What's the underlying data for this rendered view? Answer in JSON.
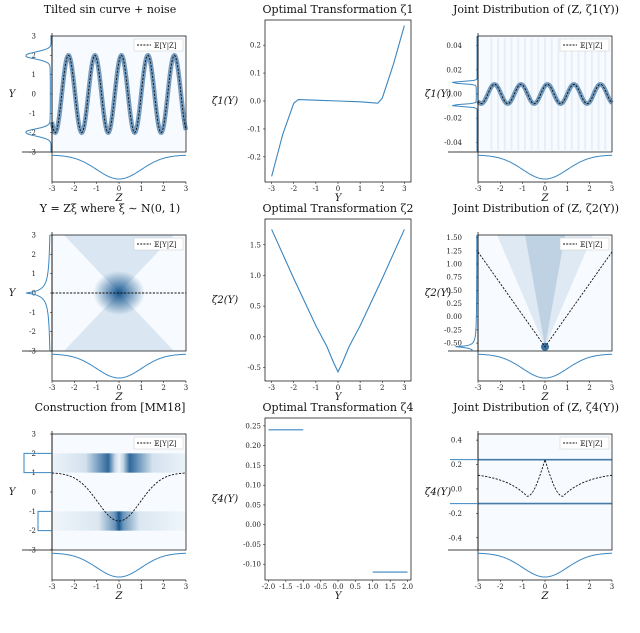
{
  "figure": {
    "accent_color": "#3a86c0",
    "density_color": "#0b4f8a",
    "expectation_color": "#111111"
  },
  "chart_data": [
    {
      "id": "p1",
      "type": "heatmap",
      "title": "Tilted sin curve + noise",
      "xlabel": "Z",
      "ylabel": "Y",
      "xlim": [
        -3,
        3
      ],
      "ylim": [
        -3,
        3
      ],
      "xticks": [
        "-3",
        "-2",
        "-1",
        "0",
        "1",
        "2",
        "3"
      ],
      "yticks": [
        "-3",
        "-2",
        "-1",
        "0",
        "1",
        "2",
        "3"
      ],
      "legend": "𝔼[Y|Z]",
      "legend_position": "top-right",
      "expectation": {
        "function": "2*sin(5.3*z + 1.0)"
      },
      "density_band_width": 0.12,
      "marginal_y": "bimodal peaks at y = -2 and y = 2",
      "marginal_z": "gaussian centered at z = 0"
    },
    {
      "id": "p2",
      "type": "line",
      "title": "Optimal Transformation ζ1",
      "xlabel": "Y",
      "ylabel": "ζ1(Y)",
      "xlim": [
        -3.3,
        3.3
      ],
      "ylim": [
        -0.29,
        0.29
      ],
      "xticks": [
        "-3",
        "-2",
        "-1",
        "0",
        "1",
        "2",
        "3"
      ],
      "yticks": [
        "-0.2",
        "-0.1",
        "0.0",
        "0.1",
        "0.2"
      ],
      "x": [
        -3,
        -2.5,
        -2,
        -1.8,
        -1,
        0,
        1,
        1.8,
        2,
        2.5,
        3
      ],
      "y": [
        -0.27,
        -0.12,
        -0.008,
        0.005,
        0.003,
        0.0,
        -0.003,
        -0.008,
        0.01,
        0.13,
        0.27
      ]
    },
    {
      "id": "p3",
      "type": "heatmap",
      "title": "Joint Distribution of (Z, ζ1(Y))",
      "xlabel": "Z",
      "ylabel": "ζ1(Y)",
      "xlim": [
        -3,
        3
      ],
      "ylim": [
        -0.048,
        0.048
      ],
      "xticks": [
        "-3",
        "-2",
        "-1",
        "0",
        "1",
        "2",
        "3"
      ],
      "yticks": [
        "-0.04",
        "-0.02",
        "0.00",
        "0.02",
        "0.04"
      ],
      "legend": "𝔼[Y|Z]",
      "legend_position": "top-right",
      "expectation": {
        "function": "0.008*sin(5.3*z + 1.0)"
      },
      "marginal_y": "peaks near ζ1 = -0.01 and ζ1 = 0.01"
    },
    {
      "id": "p4",
      "type": "heatmap",
      "title": "Y = Zξ where ξ ∼ N(0, 1)",
      "xlabel": "Z",
      "ylabel": "Y",
      "xlim": [
        -3,
        3
      ],
      "ylim": [
        -3,
        3
      ],
      "xticks": [
        "-3",
        "-2",
        "-1",
        "0",
        "1",
        "2",
        "3"
      ],
      "yticks": [
        "-3",
        "-2",
        "-1",
        "0",
        "1",
        "2",
        "3"
      ],
      "legend": "𝔼[Y|Z]",
      "legend_position": "top-right",
      "expectation": {
        "function": "0"
      },
      "marginal_y": "sharp peak at y = 0"
    },
    {
      "id": "p5",
      "type": "line",
      "title": "Optimal Transformation ζ2",
      "xlabel": "Y",
      "ylabel": "ζ2(Y)",
      "xlim": [
        -3.3,
        3.3
      ],
      "ylim": [
        -0.72,
        1.92
      ],
      "xticks": [
        "-3",
        "-2",
        "-1",
        "0",
        "1",
        "2",
        "3"
      ],
      "yticks": [
        "-0.5",
        "0.0",
        "0.5",
        "1.0",
        "1.5"
      ],
      "x": [
        -3,
        -2,
        -1,
        -0.5,
        -0.2,
        0,
        0.2,
        0.5,
        1,
        2,
        3
      ],
      "y": [
        1.75,
        0.95,
        0.18,
        -0.16,
        -0.42,
        -0.57,
        -0.42,
        -0.16,
        0.18,
        0.95,
        1.75
      ]
    },
    {
      "id": "p6",
      "type": "heatmap",
      "title": "Joint Distribution of (Z, ζ2(Y))",
      "xlabel": "Z",
      "ylabel": "ζ2(Y)",
      "xlim": [
        -3,
        3
      ],
      "ylim": [
        -0.65,
        1.55
      ],
      "xticks": [
        "-3",
        "-2",
        "-1",
        "0",
        "1",
        "2",
        "3"
      ],
      "yticks": [
        "-0.50",
        "-0.25",
        "0.00",
        "0.25",
        "0.50",
        "0.75",
        "1.00",
        "1.25",
        "1.50"
      ],
      "legend": "𝔼[Y|Z]",
      "legend_position": "top-right",
      "expectation": {
        "function": "0.6*|z| - 0.57"
      },
      "marginal_y": "sharp peak at ζ2 = -0.57"
    },
    {
      "id": "p7",
      "type": "heatmap",
      "title": "Construction from [MM18]",
      "xlabel": "Z",
      "ylabel": "Y",
      "xlim": [
        -3,
        3
      ],
      "ylim": [
        -3,
        3
      ],
      "xticks": [
        "-3",
        "-2",
        "-1",
        "0",
        "1",
        "2",
        "3"
      ],
      "yticks": [
        "-3",
        "-2",
        "-1",
        "0",
        "1",
        "2",
        "3"
      ],
      "legend": "𝔼[Y|Z]",
      "legend_position": "top-right",
      "expectation": {
        "function": "dip to -1.5 at z = 0, rising to about 1 at |z| = 3"
      },
      "bands": [
        {
          "y_range": [
            1,
            2
          ]
        },
        {
          "y_range": [
            -2,
            -1
          ]
        }
      ],
      "marginal_y": "uniform on [1,2] and [-2,-1]"
    },
    {
      "id": "p8",
      "type": "line",
      "title": "Optimal Transformation ζ4",
      "xlabel": "Y",
      "ylabel": "ζ4(Y)",
      "xlim": [
        -2.1,
        2.1
      ],
      "ylim": [
        -0.14,
        0.27
      ],
      "xticks": [
        "-2.0",
        "-1.5",
        "-1.0",
        "-0.5",
        "0.0",
        "0.5",
        "1.0",
        "1.5",
        "2.0"
      ],
      "yticks": [
        "-0.10",
        "-0.05",
        "0.00",
        "0.05",
        "0.10",
        "0.15",
        "0.20",
        "0.25"
      ],
      "segments": [
        {
          "x": [
            -2,
            -1
          ],
          "y": [
            0.24,
            0.24
          ]
        },
        {
          "x": [
            1,
            2
          ],
          "y": [
            -0.12,
            -0.12
          ]
        }
      ]
    },
    {
      "id": "p9",
      "type": "heatmap",
      "title": "Joint Distribution of (Z, ζ4(Y))",
      "xlabel": "Z",
      "ylabel": "ζ4(Y)",
      "xlim": [
        -3,
        3
      ],
      "ylim": [
        -0.5,
        0.45
      ],
      "xticks": [
        "-3",
        "-2",
        "-1",
        "0",
        "1",
        "2",
        "3"
      ],
      "yticks": [
        "-0.4",
        "-0.2",
        "0.0",
        "0.2",
        "0.4"
      ],
      "legend": "𝔼[Y|Z]",
      "legend_position": "top-right",
      "expectation": {
        "function": "peak 0.24 at z = 0, dip to -0.06 at |z| = 1, about 0.14 at |z| = 3"
      },
      "bands": [
        {
          "value": 0.24
        },
        {
          "value": -0.12
        }
      ],
      "marginal_y": "two spikes at ζ4 = 0.24 and ζ4 = -0.12"
    }
  ]
}
